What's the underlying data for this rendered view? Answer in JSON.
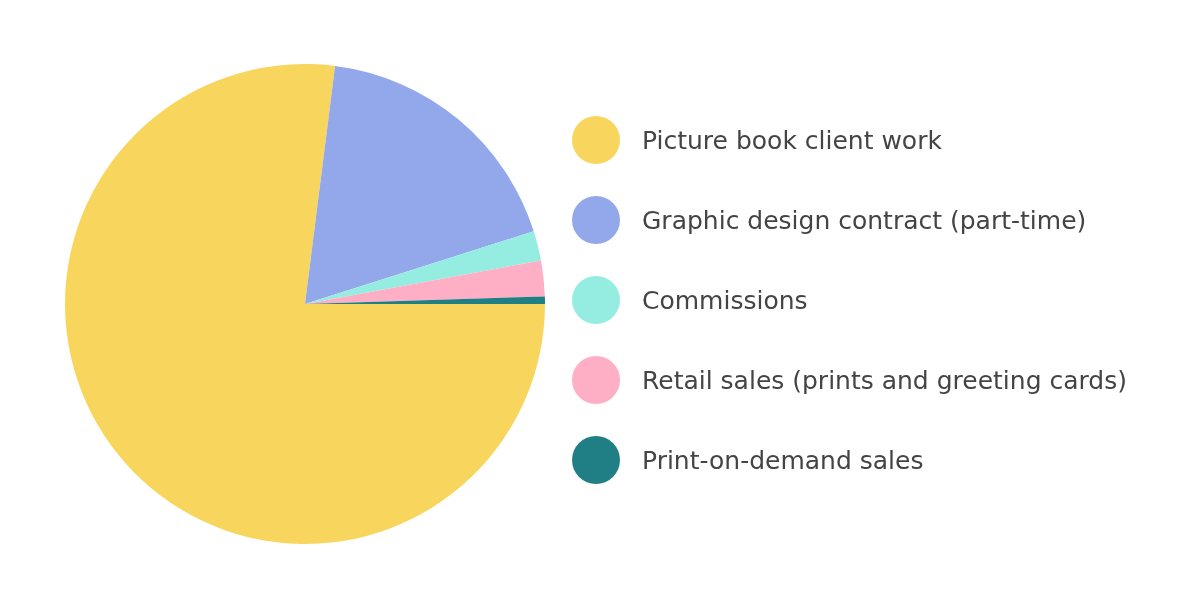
{
  "chart_data": {
    "type": "pie",
    "categories": [
      "Picture book client work",
      "Graphic design contract (part-time)",
      "Commissions",
      "Retail sales (prints and greeting cards)",
      "Print-on-demand sales"
    ],
    "values": [
      77.0,
      18.1,
      2.0,
      2.4,
      0.5
    ],
    "colors": [
      "#f8d65e",
      "#93a8eb",
      "#95ede2",
      "#ffafc5",
      "#1f7f84"
    ],
    "legend": "right"
  }
}
